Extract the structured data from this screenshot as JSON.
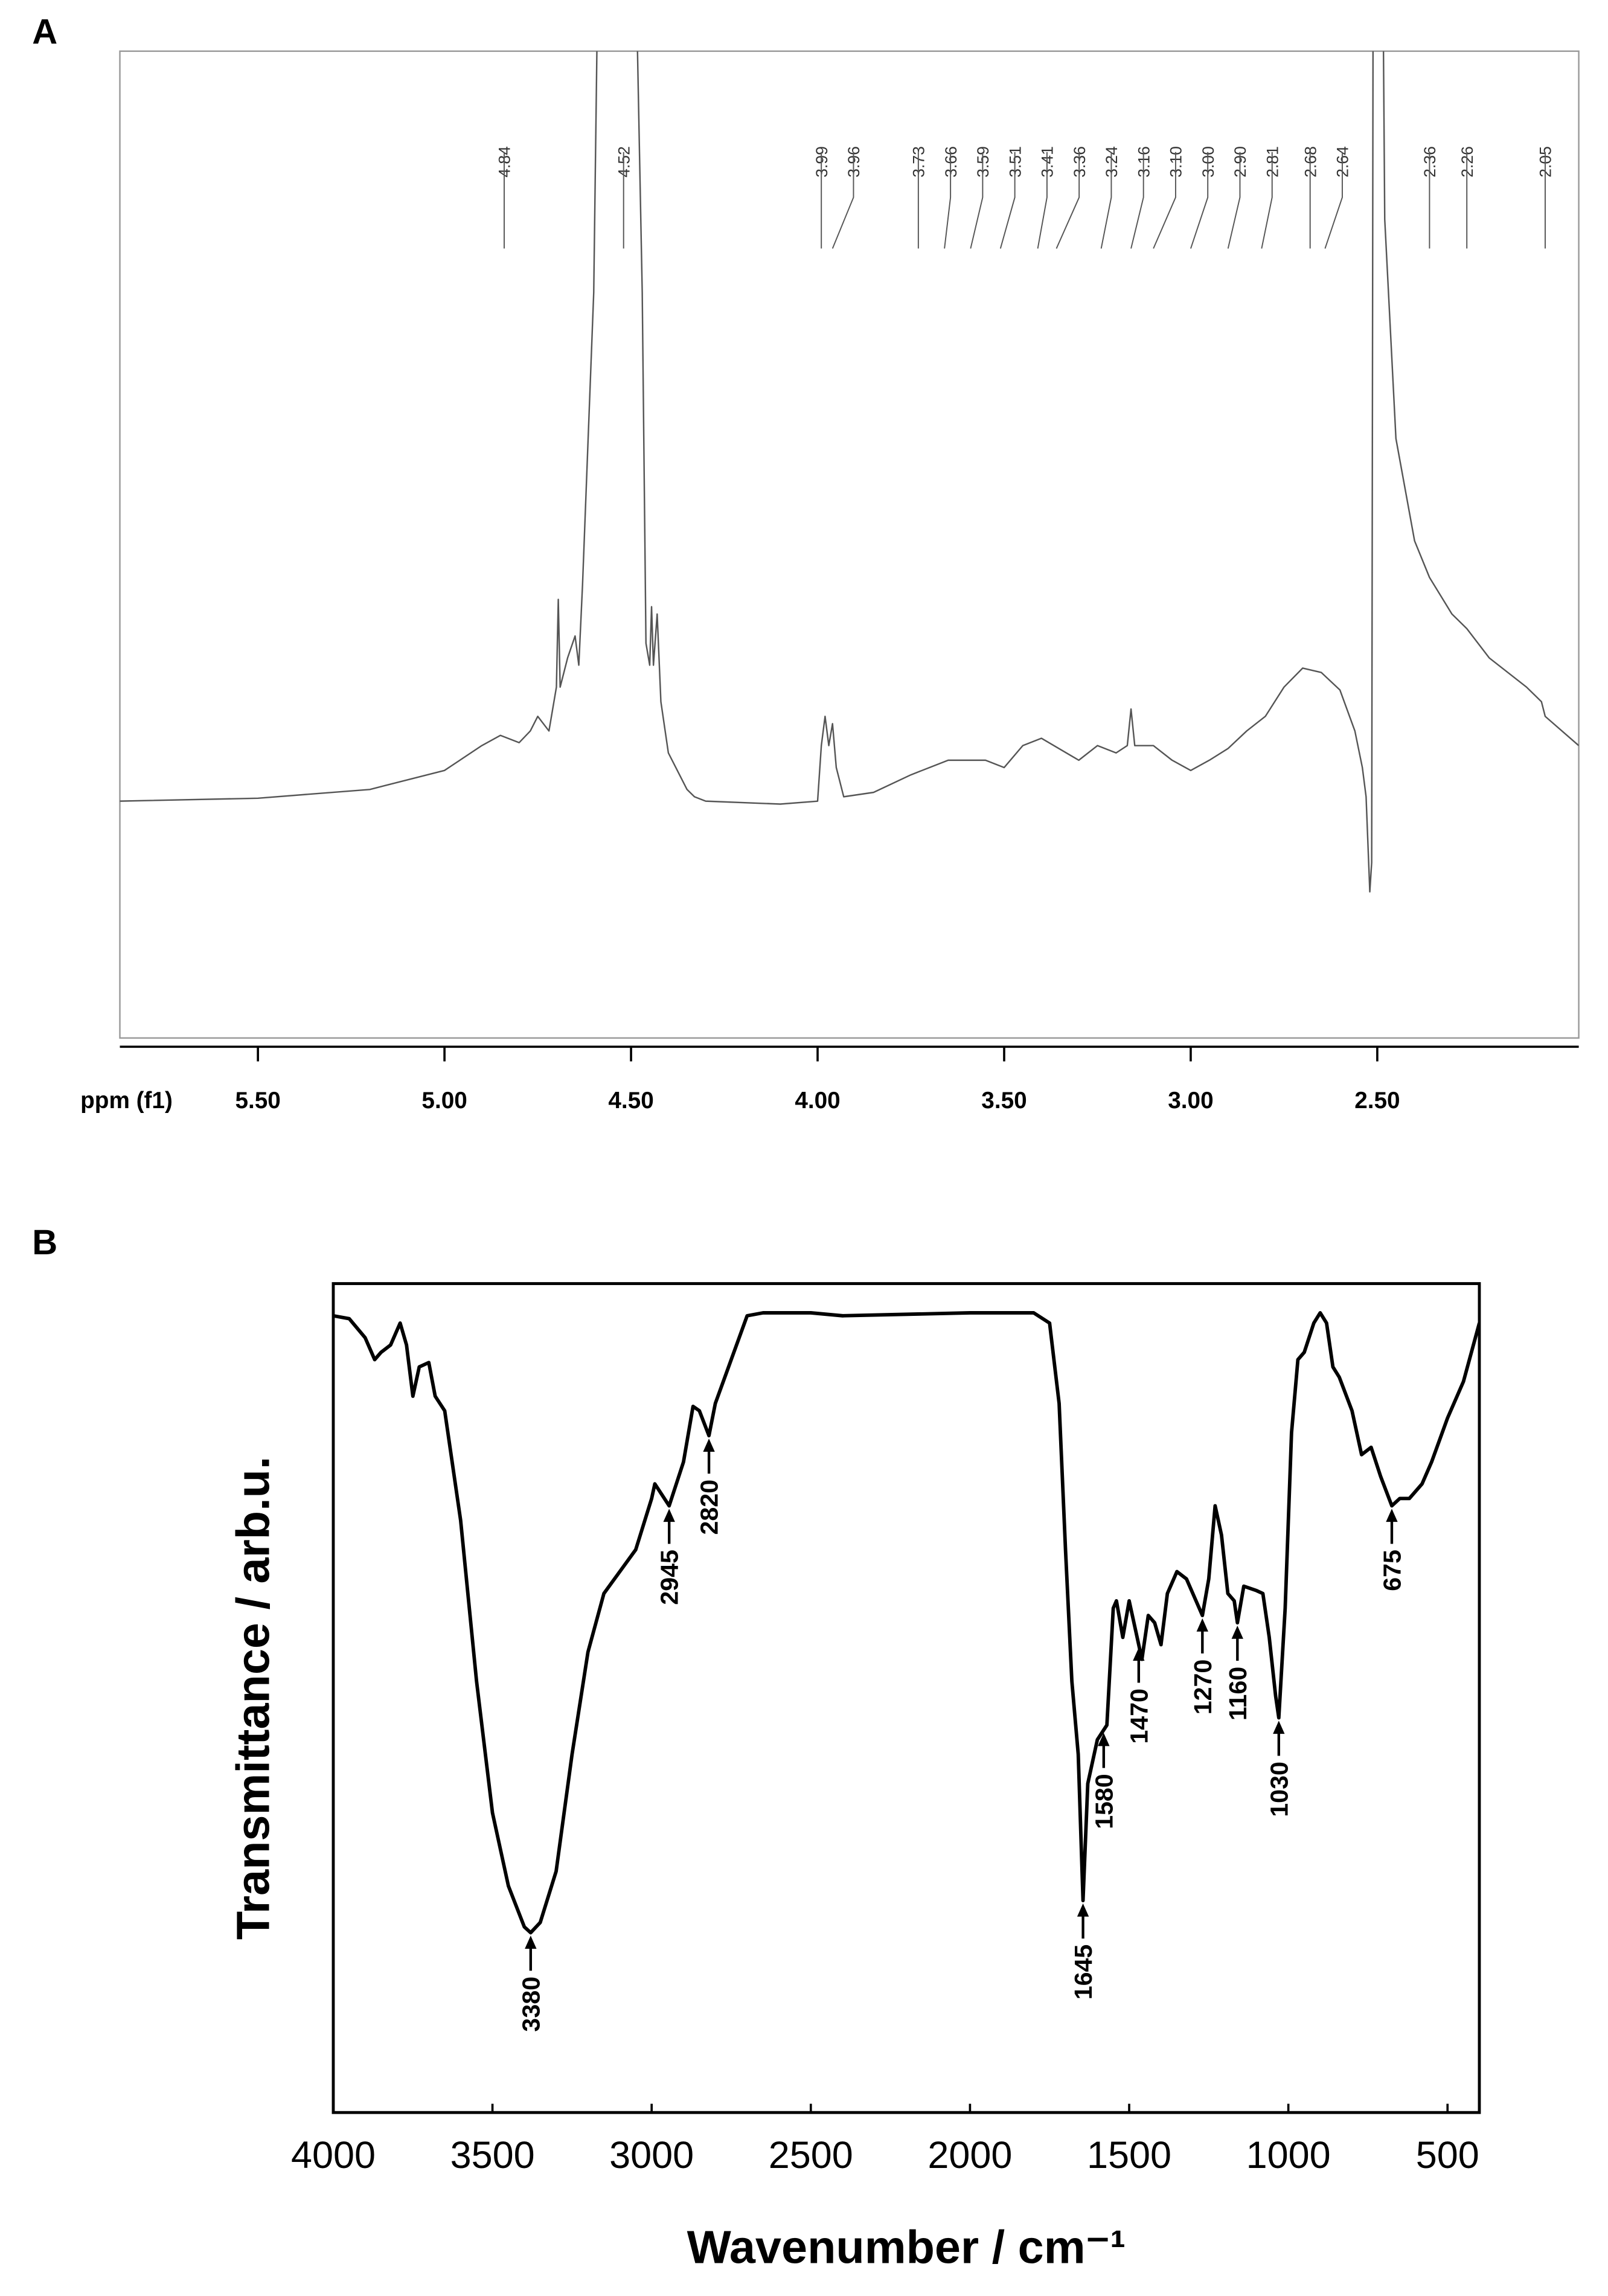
{
  "chart_data": [
    {
      "type": "line",
      "panel_label": "A",
      "xlabel": "ppm (f1)",
      "color": "#555555",
      "x": [
        5.87,
        5.5,
        5.2,
        5.0,
        4.9,
        4.85,
        4.8,
        4.77,
        4.75,
        4.72,
        4.7,
        4.695,
        4.69,
        4.67,
        4.65,
        4.64,
        4.63,
        4.6,
        4.58,
        4.5,
        4.47,
        4.46,
        4.45,
        4.445,
        4.44,
        4.43,
        4.42,
        4.4,
        4.35,
        4.33,
        4.3,
        4.1,
        4.0,
        3.99,
        3.98,
        3.97,
        3.96,
        3.95,
        3.93,
        3.85,
        3.75,
        3.65,
        3.55,
        3.5,
        3.45,
        3.4,
        3.3,
        3.25,
        3.2,
        3.17,
        3.16,
        3.15,
        3.1,
        3.05,
        3.0,
        2.95,
        2.9,
        2.85,
        2.8,
        2.75,
        2.7,
        2.65,
        2.6,
        2.56,
        2.54,
        2.53,
        2.52,
        2.515,
        2.51,
        2.49,
        2.48,
        2.45,
        2.4,
        2.36,
        2.3,
        2.26,
        2.2,
        2.1,
        2.06,
        2.05,
        1.96
      ],
      "values": [
        162,
        164,
        170,
        183,
        200,
        207,
        202,
        210,
        220,
        210,
        240,
        300,
        240,
        260,
        275,
        255,
        310,
        510,
        900,
        900,
        510,
        270,
        255,
        295,
        255,
        290,
        230,
        195,
        170,
        165,
        162,
        160,
        162,
        200,
        220,
        200,
        215,
        185,
        165,
        168,
        180,
        190,
        190,
        185,
        200,
        205,
        190,
        200,
        195,
        200,
        225,
        200,
        200,
        190,
        183,
        190,
        198,
        210,
        220,
        240,
        253,
        250,
        238,
        210,
        185,
        165,
        100,
        120,
        900,
        900,
        560,
        410,
        340,
        315,
        290,
        280,
        260,
        240,
        230,
        220,
        200
      ],
      "xlim": [
        5.87,
        1.96
      ],
      "ylim": [
        0,
        675
      ],
      "xticks": [
        {
          "value": 5.5,
          "label": "5.50"
        },
        {
          "value": 5.0,
          "label": "5.00"
        },
        {
          "value": 4.5,
          "label": "4.50"
        },
        {
          "value": 4.0,
          "label": "4.00"
        },
        {
          "value": 3.5,
          "label": "3.50"
        },
        {
          "value": 3.0,
          "label": "3.00"
        },
        {
          "value": 2.5,
          "label": "2.50"
        }
      ],
      "peaks": [
        4.84,
        4.52,
        3.99,
        3.96,
        3.73,
        3.66,
        3.59,
        3.51,
        3.41,
        3.36,
        3.24,
        3.16,
        {
          "value": 3.1,
          "label": "3.10"
        },
        {
          "value": 3.0,
          "label": "3.00"
        },
        {
          "value": 2.9,
          "label": "2.90"
        },
        2.81,
        2.68,
        2.64,
        2.36,
        2.26,
        2.05
      ]
    },
    {
      "type": "line",
      "panel_label": "B",
      "xlabel": "Wavenumber / cm⁻¹",
      "ylabel": "Transmittance / arb.u.",
      "color": "#000000",
      "x": [
        4000,
        3950,
        3900,
        3870,
        3850,
        3820,
        3790,
        3770,
        3750,
        3730,
        3700,
        3680,
        3650,
        3600,
        3550,
        3500,
        3450,
        3400,
        3380,
        3350,
        3300,
        3250,
        3200,
        3150,
        3100,
        3050,
        3000,
        2990,
        2945,
        2900,
        2870,
        2850,
        2820,
        2800,
        2750,
        2700,
        2650,
        2500,
        2400,
        2000,
        1800,
        1750,
        1720,
        1700,
        1680,
        1660,
        1645,
        1630,
        1600,
        1570,
        1550,
        1540,
        1520,
        1500,
        1480,
        1460,
        1440,
        1420,
        1400,
        1380,
        1350,
        1320,
        1290,
        1270,
        1250,
        1230,
        1210,
        1190,
        1170,
        1160,
        1140,
        1100,
        1080,
        1060,
        1040,
        1030,
        1010,
        990,
        970,
        950,
        920,
        900,
        880,
        860,
        840,
        800,
        770,
        740,
        710,
        675,
        650,
        620,
        580,
        550,
        500,
        450,
        400
      ],
      "values": [
        545,
        543,
        530,
        515,
        520,
        525,
        540,
        525,
        490,
        510,
        513,
        490,
        480,
        405,
        295,
        205,
        155,
        127,
        123,
        130,
        165,
        245,
        315,
        355,
        370,
        385,
        420,
        430,
        415,
        445,
        483,
        480,
        463,
        485,
        515,
        545,
        547,
        547,
        545,
        547,
        547,
        540,
        485,
        385,
        295,
        245,
        145,
        225,
        255,
        265,
        345,
        350,
        325,
        350,
        330,
        310,
        340,
        335,
        320,
        355,
        370,
        365,
        350,
        340,
        365,
        415,
        395,
        355,
        350,
        335,
        360,
        357,
        355,
        325,
        285,
        270,
        345,
        465,
        515,
        520,
        540,
        547,
        540,
        510,
        503,
        480,
        450,
        455,
        435,
        415,
        420,
        420,
        430,
        445,
        475,
        500,
        540
      ],
      "xlim": [
        4000,
        400
      ],
      "ylim": [
        0,
        567
      ],
      "xticks": [
        4000,
        3500,
        3000,
        2500,
        2000,
        1500,
        1000,
        500
      ],
      "peaks": [
        3380,
        2945,
        2820,
        1645,
        1580,
        1470,
        1270,
        1160,
        1030,
        675
      ]
    }
  ]
}
